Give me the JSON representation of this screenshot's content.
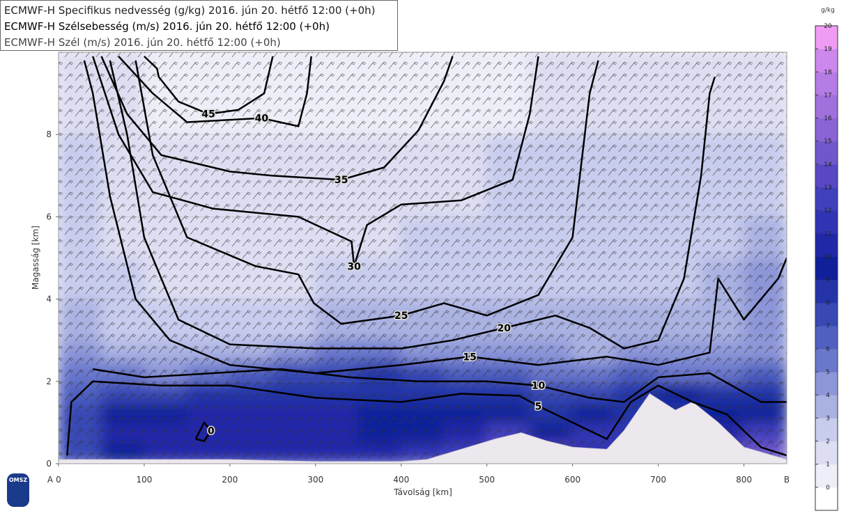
{
  "legend": [
    "ECMWF-H Specifikus nedvesség (g/kg) 2016. jún 20. hétfő 12:00 (+0h)",
    "ECMWF-H Szélsebesség (m/s) 2016. jún 20. hétfő 12:00 (+0h)",
    "ECMWF-H Szél (m/s) 2016. jún 20. hétfő 12:00 (+0h)"
  ],
  "logo": "OMSZ",
  "chart_data": {
    "type": "cross-section",
    "xlabel": "Távolság [km]",
    "ylabel": "Magasság [km]",
    "x_start_label": "A",
    "x_end_label": "B",
    "xlim": [
      0,
      850
    ],
    "ylim": [
      0,
      10
    ],
    "xticks": [
      0,
      100,
      200,
      300,
      400,
      500,
      600,
      700,
      800
    ],
    "yticks": [
      0,
      2,
      4,
      6,
      8
    ],
    "grid": true,
    "humidity": {
      "x_edges": [
        0,
        50,
        100,
        150,
        200,
        250,
        300,
        350,
        400,
        450,
        500,
        550,
        600,
        650,
        700,
        750,
        800,
        850
      ],
      "y_edges": [
        0,
        0.5,
        1,
        1.5,
        2,
        2.5,
        3,
        4,
        5,
        6,
        8,
        10
      ],
      "values": [
        [
          7,
          9,
          10,
          10,
          10,
          10,
          10,
          10,
          11,
          12,
          14,
          13,
          11,
          12,
          9,
          13,
          14
        ],
        [
          7,
          10,
          10,
          10,
          10,
          10,
          10,
          9,
          9,
          10,
          12,
          9,
          11,
          11,
          9,
          10,
          12
        ],
        [
          7,
          9,
          9,
          10,
          10,
          10,
          10,
          9,
          9,
          9,
          9,
          8,
          9,
          8,
          8,
          9,
          9
        ],
        [
          6,
          7,
          7,
          8,
          8,
          8,
          8,
          8,
          8,
          8,
          8,
          7,
          7,
          8,
          9,
          8,
          8
        ],
        [
          5,
          5,
          4,
          5,
          6,
          7,
          7,
          8,
          7,
          6,
          6,
          5,
          5,
          6,
          5,
          5,
          6
        ],
        [
          4,
          3,
          3,
          3,
          3,
          4,
          5,
          5,
          4,
          4,
          4,
          4,
          3,
          4,
          4,
          4,
          4
        ],
        [
          3,
          2,
          2,
          2,
          2,
          2,
          3,
          3,
          3,
          3,
          3,
          3,
          3,
          3,
          3,
          3,
          4
        ],
        [
          2,
          2,
          1,
          1,
          1,
          1,
          2,
          2,
          2,
          2,
          2,
          2,
          2,
          2,
          2,
          3,
          4
        ],
        [
          2,
          1,
          1,
          1,
          1,
          1,
          1,
          1,
          2,
          2,
          2,
          2,
          2,
          2,
          2,
          2,
          3
        ],
        [
          2,
          1,
          1,
          1,
          1,
          1,
          1,
          1,
          1,
          1,
          2,
          2,
          2,
          2,
          2,
          2,
          2
        ],
        [
          1,
          1,
          0,
          0,
          0,
          0,
          0,
          0,
          0,
          0,
          0,
          1,
          1,
          1,
          1,
          1,
          1
        ]
      ]
    },
    "terrain": {
      "x": [
        0,
        100,
        200,
        300,
        400,
        430,
        470,
        510,
        540,
        570,
        600,
        640,
        660,
        690,
        720,
        740,
        770,
        800,
        850
      ],
      "values": [
        0.1,
        0.1,
        0.1,
        0.05,
        0.05,
        0.1,
        0.35,
        0.6,
        0.75,
        0.55,
        0.4,
        0.35,
        0.8,
        1.7,
        1.3,
        1.5,
        1.0,
        0.4,
        0.1
      ],
      "color": "#ede8ee"
    },
    "contours": [
      {
        "level": 0,
        "x": [
          160,
          170,
          178,
          170,
          160
        ],
        "values": [
          0.6,
          0.55,
          0.8,
          1.0,
          0.6
        ]
      },
      {
        "level": 5,
        "x": [
          10,
          15,
          40,
          120,
          200,
          300,
          400,
          470,
          538,
          560,
          600,
          640,
          668,
          700,
          740,
          780,
          820,
          850
        ],
        "values": [
          0.2,
          1.5,
          2.0,
          1.9,
          1.9,
          1.6,
          1.5,
          1.7,
          1.65,
          1.4,
          1.0,
          0.6,
          1.5,
          1.9,
          1.5,
          1.2,
          0.4,
          0.2
        ]
      },
      {
        "level": 10,
        "x": [
          40,
          100,
          180,
          260,
          340,
          420,
          500,
          560,
          620,
          660,
          700,
          760,
          820,
          850
        ],
        "values": [
          2.3,
          2.1,
          2.2,
          2.3,
          2.1,
          2.0,
          2.0,
          1.9,
          1.6,
          1.5,
          2.1,
          2.2,
          1.5,
          1.5
        ]
      },
      {
        "level": 15,
        "x": [
          30,
          40,
          60,
          90,
          130,
          200,
          300,
          400,
          480,
          560,
          640,
          700,
          760,
          770,
          800,
          840,
          850
        ],
        "values": [
          9.8,
          9.0,
          6.5,
          4.0,
          3.0,
          2.4,
          2.2,
          2.4,
          2.6,
          2.4,
          2.6,
          2.4,
          2.7,
          4.5,
          3.5,
          4.5,
          5.0
        ]
      },
      {
        "level": 20,
        "x": [
          60,
          80,
          100,
          140,
          200,
          300,
          400,
          460,
          520,
          580,
          620,
          660,
          700,
          730,
          750,
          760,
          766
        ],
        "values": [
          9.8,
          8.0,
          5.5,
          3.5,
          2.9,
          2.8,
          2.8,
          3.0,
          3.3,
          3.6,
          3.3,
          2.8,
          3.0,
          4.5,
          7.0,
          9.0,
          9.4
        ]
      },
      {
        "level": 25,
        "x": [
          90,
          110,
          150,
          230,
          280,
          298,
          330,
          400,
          450,
          500,
          560,
          600,
          620,
          630
        ],
        "values": [
          9.8,
          7.5,
          5.5,
          4.8,
          4.6,
          3.9,
          3.4,
          3.6,
          3.9,
          3.6,
          4.1,
          5.5,
          9.0,
          9.8
        ]
      },
      {
        "level": 30,
        "x": [
          40,
          70,
          110,
          180,
          280,
          342,
          345,
          360,
          400,
          470,
          530,
          550,
          560
        ],
        "values": [
          9.9,
          8.0,
          6.6,
          6.2,
          6.0,
          5.4,
          4.8,
          5.8,
          6.3,
          6.4,
          6.9,
          8.5,
          9.9
        ]
      },
      {
        "level": 35,
        "x": [
          50,
          80,
          120,
          200,
          249,
          330,
          380,
          420,
          450,
          460
        ],
        "values": [
          9.9,
          8.5,
          7.5,
          7.1,
          7.0,
          6.9,
          7.2,
          8.1,
          9.3,
          9.9
        ]
      },
      {
        "level": 40,
        "x": [
          70,
          110,
          150,
          237,
          280,
          290,
          295
        ],
        "values": [
          9.9,
          9.0,
          8.3,
          8.4,
          8.2,
          9.0,
          9.9
        ]
      },
      {
        "level": 45,
        "x": [
          100,
          115,
          117,
          140,
          175,
          210,
          240,
          250
        ],
        "values": [
          9.9,
          9.6,
          9.4,
          8.8,
          8.5,
          8.6,
          9.0,
          9.9
        ]
      }
    ],
    "colorbar": {
      "unit": "g/kg",
      "ylim": [
        -1,
        20
      ],
      "ticks": [
        0,
        1,
        2,
        3,
        4,
        5,
        6,
        7,
        8,
        9,
        10,
        11,
        12,
        13,
        14,
        15,
        16,
        17,
        18,
        19,
        20
      ],
      "colors": [
        "#ffffff",
        "#eeeef8",
        "#dedef2",
        "#c8cced",
        "#aab2e2",
        "#8c96d8",
        "#6a78cc",
        "#5060c0",
        "#3848b4",
        "#2434a8",
        "#10209a",
        "#2028a8",
        "#3034b4",
        "#4040bc",
        "#5848c4",
        "#7058cc",
        "#8864d4",
        "#a070dc",
        "#b47ce4",
        "#cc88ec",
        "#f09cf4"
      ]
    }
  }
}
